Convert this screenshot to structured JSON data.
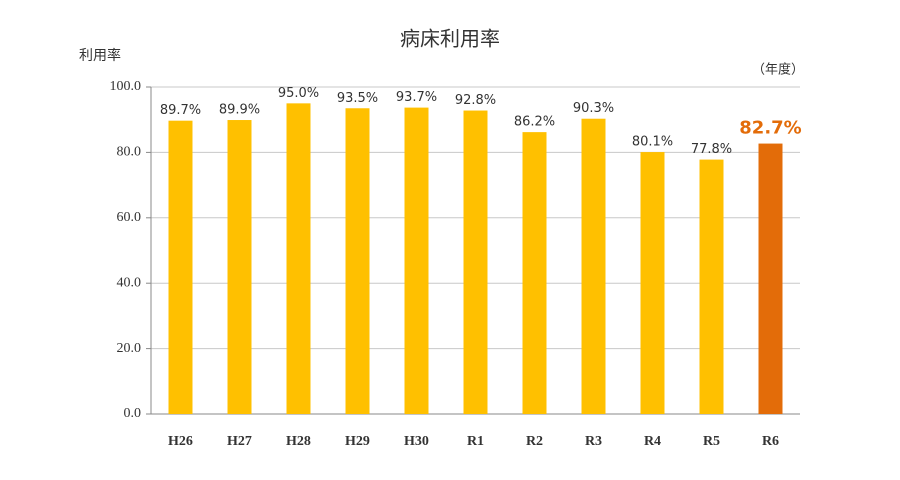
{
  "chart_data": {
    "type": "bar",
    "title": "病床利用率",
    "y_label": "利用率",
    "x_unit_label": "（年度）",
    "categories": [
      "H26",
      "H27",
      "H28",
      "H29",
      "H30",
      "R1",
      "R2",
      "R3",
      "R4",
      "R5",
      "R6"
    ],
    "values": [
      89.7,
      89.9,
      95.0,
      93.5,
      93.7,
      92.8,
      86.2,
      90.3,
      80.1,
      77.8,
      82.7
    ],
    "value_labels": [
      "89.7%",
      "89.9%",
      "95.0%",
      "93.5%",
      "93.7%",
      "92.8%",
      "86.2%",
      "90.3%",
      "80.1%",
      "77.8%",
      "82.7%"
    ],
    "colors": [
      "#FFC000",
      "#FFC000",
      "#FFC000",
      "#FFC000",
      "#FFC000",
      "#FFC000",
      "#FFC000",
      "#FFC000",
      "#FFC000",
      "#FFC000",
      "#E36C09"
    ],
    "ylim": [
      0,
      100
    ],
    "yticks": [
      {
        "value": 0,
        "label": "0.0"
      },
      {
        "value": 20,
        "label": "20.0"
      },
      {
        "value": 40,
        "label": "40.0"
      },
      {
        "value": 60,
        "label": "60.0"
      },
      {
        "value": 80,
        "label": "80.0"
      },
      {
        "value": 100,
        "label": "100.0"
      }
    ],
    "grid": true
  }
}
